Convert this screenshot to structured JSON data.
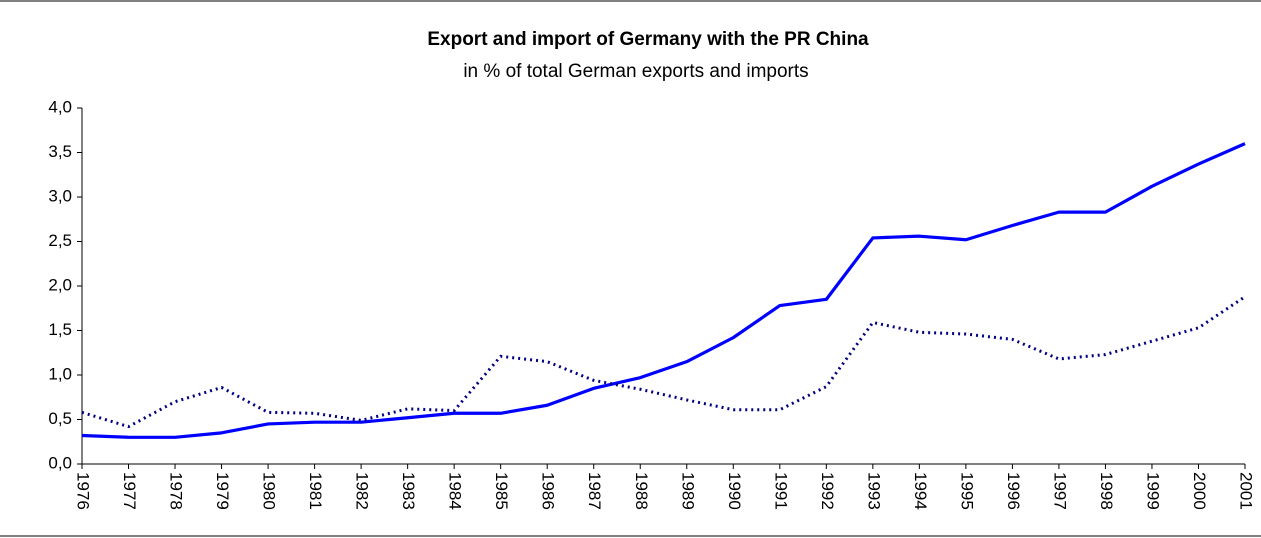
{
  "chart_data": {
    "type": "line",
    "title": "Export and import of Germany with the PR China",
    "subtitle": "in % of total German exports and imports",
    "categories": [
      "1976",
      "1977",
      "1978",
      "1979",
      "1980",
      "1981",
      "1982",
      "1983",
      "1984",
      "1985",
      "1986",
      "1987",
      "1988",
      "1989",
      "1990",
      "1991",
      "1992",
      "1993",
      "1994",
      "1995",
      "1996",
      "1997",
      "1998",
      "1999",
      "2000",
      "2001"
    ],
    "series": [
      {
        "color": "#0000ff",
        "style": "solid",
        "values": [
          0.32,
          0.3,
          0.3,
          0.35,
          0.45,
          0.47,
          0.47,
          0.52,
          0.57,
          0.57,
          0.66,
          0.85,
          0.97,
          1.15,
          1.42,
          1.78,
          1.85,
          2.54,
          2.56,
          2.52,
          2.68,
          2.83,
          2.83,
          3.12,
          3.37,
          3.6
        ]
      },
      {
        "color": "#000080",
        "style": "dotted",
        "values": [
          0.58,
          0.42,
          0.7,
          0.86,
          0.58,
          0.57,
          0.49,
          0.62,
          0.6,
          1.21,
          1.15,
          0.94,
          0.84,
          0.72,
          0.61,
          0.61,
          0.87,
          1.59,
          1.48,
          1.46,
          1.4,
          1.18,
          1.23,
          1.38,
          1.53,
          1.88
        ]
      }
    ],
    "ylim": [
      0,
      4
    ],
    "yticks": [
      {
        "value": 0,
        "label": "0,0"
      },
      {
        "value": 0.5,
        "label": "0,5"
      },
      {
        "value": 1,
        "label": "1,0"
      },
      {
        "value": 1.5,
        "label": "1,5"
      },
      {
        "value": 2,
        "label": "2,0"
      },
      {
        "value": 2.5,
        "label": "2,5"
      },
      {
        "value": 3,
        "label": "3,0"
      },
      {
        "value": 3.5,
        "label": "3,5"
      },
      {
        "value": 4,
        "label": "4,0"
      }
    ],
    "grid": false
  }
}
